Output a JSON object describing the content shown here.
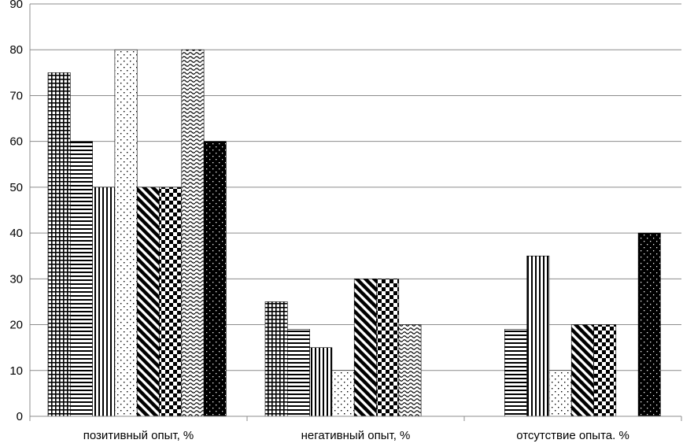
{
  "chart_data": {
    "type": "bar",
    "categories": [
      "позитивный опыт, %",
      "негативный опыт, %",
      "отсутствие опыта. %"
    ],
    "series": [
      {
        "values": [
          75,
          25,
          0
        ],
        "pattern": "grid"
      },
      {
        "values": [
          60,
          19,
          19
        ],
        "pattern": "horizontal-lines"
      },
      {
        "values": [
          50,
          15,
          35
        ],
        "pattern": "vertical-lines"
      },
      {
        "values": [
          80,
          10,
          10
        ],
        "pattern": "dots"
      },
      {
        "values": [
          50,
          30,
          20
        ],
        "pattern": "diagonal-stripes"
      },
      {
        "values": [
          50,
          30,
          20
        ],
        "pattern": "checkerboard"
      },
      {
        "values": [
          80,
          20,
          0
        ],
        "pattern": "waves"
      },
      {
        "values": [
          60,
          0,
          40
        ],
        "pattern": "solid-dots"
      }
    ],
    "yticks": [
      "0",
      "10",
      "20",
      "30",
      "40",
      "50",
      "60",
      "70",
      "80",
      "90"
    ],
    "ylim": [
      0,
      90
    ],
    "grid": true,
    "legend": "none",
    "colors": {
      "bar_stroke": "#000000",
      "grid": "#8c8c8c",
      "axis": "#8c8c8c",
      "fill_dark": "#000000",
      "fill_light": "#ffffff"
    }
  }
}
